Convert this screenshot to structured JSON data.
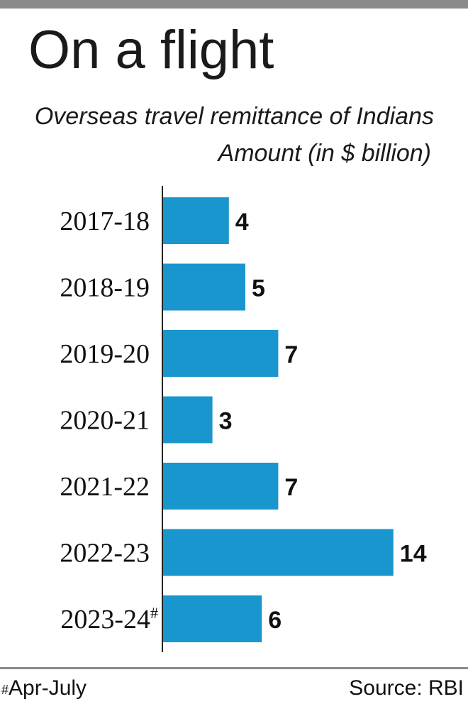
{
  "header": {
    "title": "On a flight",
    "subtitle": "Overseas travel remittance of Indians",
    "unit_label": "Amount (in $ billion)"
  },
  "footer": {
    "footnote_mark": "#",
    "footnote_text": "Apr-July",
    "source": "Source: RBI"
  },
  "colors": {
    "bar": "#1a96cf",
    "axis": "#222222",
    "rule": "#8a8a8a"
  },
  "chart_data": {
    "type": "bar",
    "orientation": "horizontal",
    "categories": [
      "2017-18",
      "2018-19",
      "2019-20",
      "2020-21",
      "2021-22",
      "2022-23",
      "2023-24#"
    ],
    "values": [
      4,
      5,
      7,
      3,
      7,
      14,
      6
    ],
    "data_labels": [
      "4",
      "5",
      "7",
      "3",
      "7",
      "14",
      "6"
    ],
    "title": "On a flight",
    "subtitle": "Overseas travel remittance of Indians",
    "ylabel": "Amount (in $ billion)",
    "xlim": [
      0,
      14
    ],
    "grid": false,
    "legend": "none"
  }
}
